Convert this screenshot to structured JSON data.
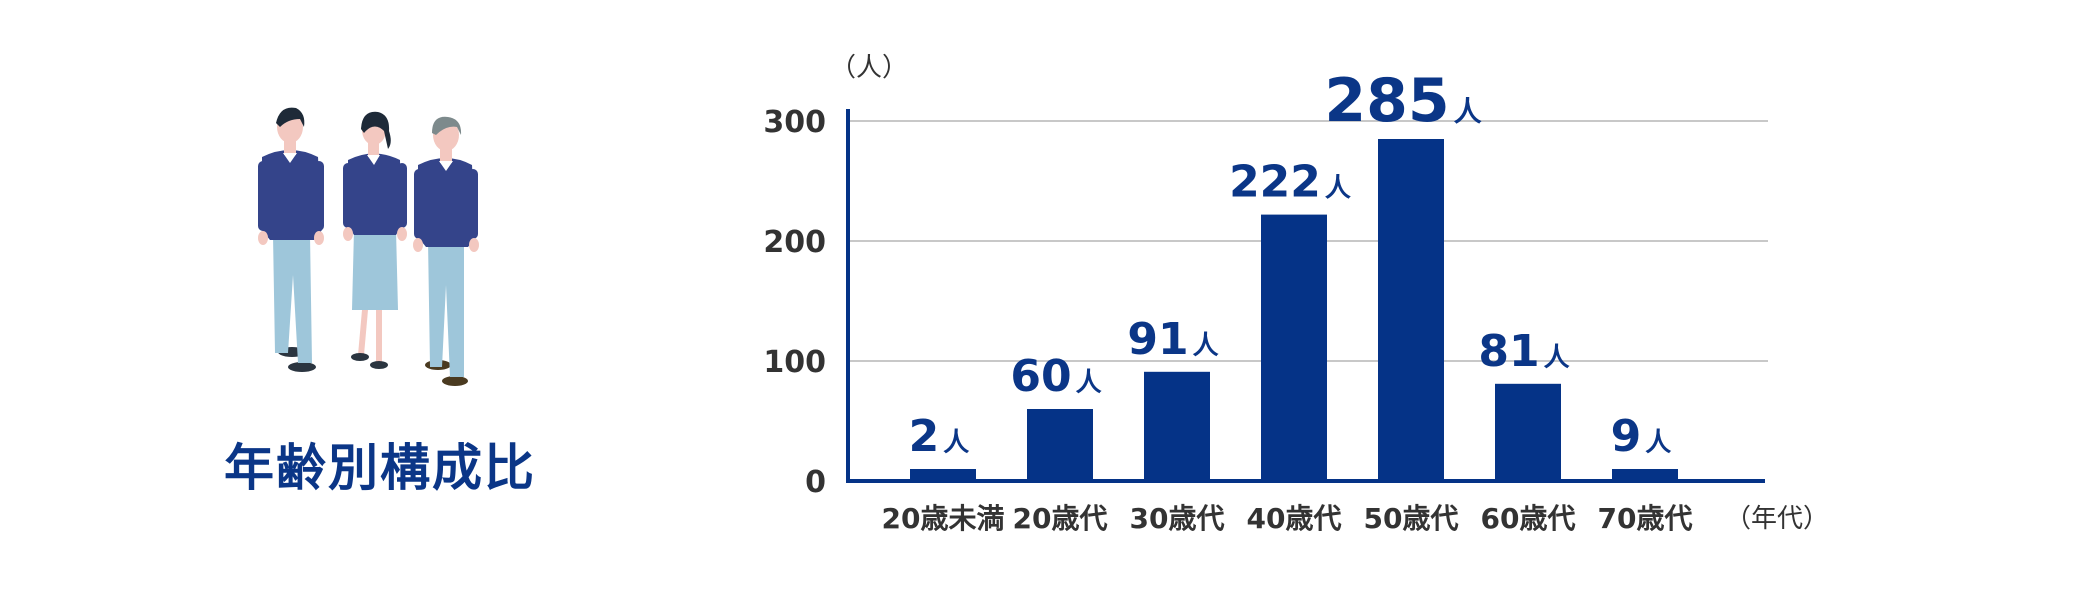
{
  "title": "年齢別構成比",
  "illustration_icon": "people-group-icon",
  "colors": {
    "bar": "#053387",
    "accent_text": "#0b3687",
    "axis": "#053387",
    "grid": "#c8c8c8",
    "tick_text": "#333333"
  },
  "chart_data": {
    "type": "bar",
    "categories": [
      "20歳未満",
      "20歳代",
      "30歳代",
      "40歳代",
      "50歳代",
      "60歳代",
      "70歳代"
    ],
    "values": [
      2,
      60,
      91,
      222,
      285,
      81,
      9
    ],
    "y_unit_label": "（人）",
    "x_unit_label": "（年代）",
    "value_suffix": "人",
    "yticks": [
      0,
      100,
      200,
      300
    ],
    "ylim": [
      0,
      300
    ],
    "grid": true
  }
}
